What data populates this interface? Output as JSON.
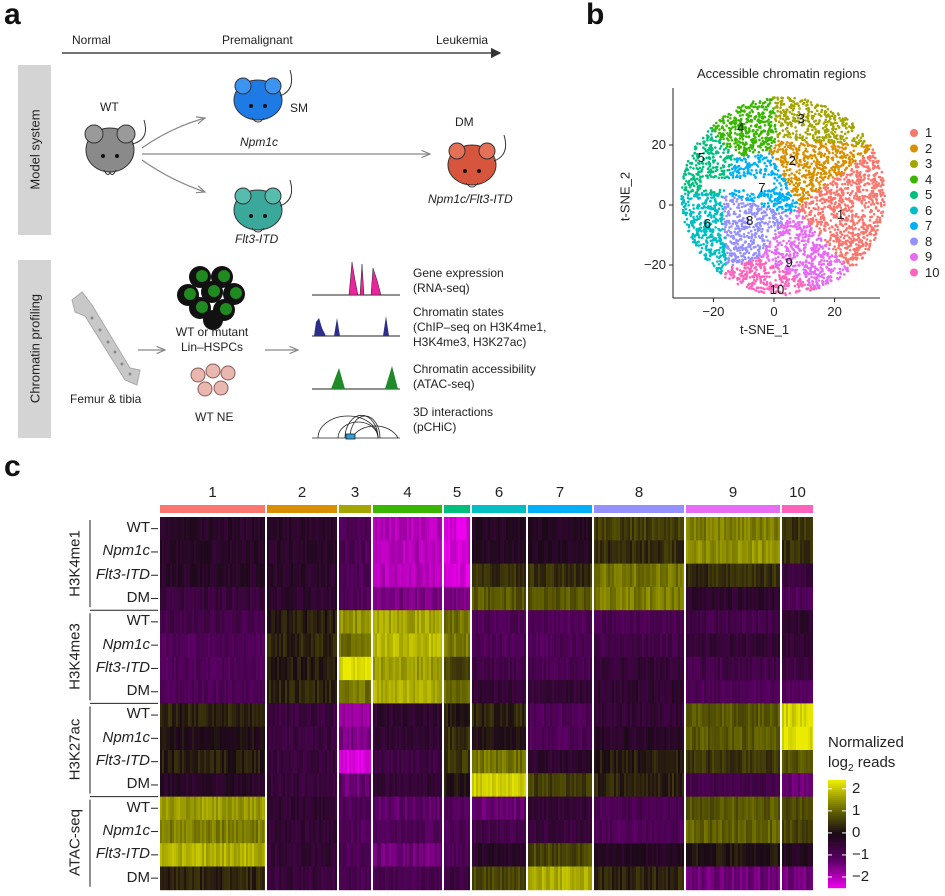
{
  "panel_a": {
    "label": "a",
    "timeline": [
      "Normal",
      "Premalignant",
      "Leukemia"
    ],
    "model_system_label": "Model system",
    "chromatin_profiling_label": "Chromatin profiling",
    "mice": {
      "wt": "WT",
      "sm": "SM",
      "sm_genotype": "Npm1c",
      "flt3_genotype": "Flt3-ITD",
      "dm": "DM",
      "dm_genotype": "Npm1c/Flt3-ITD"
    },
    "bone_label": "Femur & tibia",
    "hspc_label_1": "WT or mutant",
    "hspc_label_2": "Lin–HSPCs",
    "ne_label": "WT NE",
    "assays": [
      {
        "line1": "Gene expression",
        "line2": "(RNA-seq)"
      },
      {
        "line1": "Chromatin states",
        "line2": "(ChIP–seq on H3K4me1,",
        "line3": "H3K4me3, H3K27ac)"
      },
      {
        "line1": "Chromatin accessibility",
        "line2": "(ATAC-seq)"
      },
      {
        "line1": "3D interactions",
        "line2": "(pCHiC)"
      }
    ],
    "colors": {
      "wt_mouse": "#8a8a8a",
      "sm_mouse": "#1e7be6",
      "flt3_mouse": "#3aa89a",
      "dm_mouse": "#d8553d",
      "rna": "#e8259c",
      "chip": "#2b2f8a",
      "atac": "#1f8a2a",
      "pchic": "#2aa0d8"
    }
  },
  "panel_b": {
    "label": "b",
    "chart_data": {
      "type": "scatter",
      "title": "Accessible chromatin regions",
      "xlabel": "t-SNE_1",
      "ylabel": "t-SNE_2",
      "xlim": [
        -33,
        38
      ],
      "ylim": [
        -31,
        38
      ],
      "xticks": [
        "−20",
        "0",
        "20"
      ],
      "yticks": [
        "20",
        "0",
        "−20"
      ],
      "xtick_values": [
        -20,
        0,
        20
      ],
      "ytick_values": [
        20,
        0,
        -20
      ],
      "legend_position": "right",
      "clusters": [
        {
          "name": "1",
          "label_pos": [
            22,
            -3
          ],
          "center": [
            22,
            -3
          ],
          "color": "#F8766D"
        },
        {
          "name": "2",
          "label_pos": [
            6,
            15
          ],
          "center": [
            9,
            14
          ],
          "color": "#D89000"
        },
        {
          "name": "3",
          "label_pos": [
            9,
            29
          ],
          "center": [
            10,
            29
          ],
          "color": "#A3A500"
        },
        {
          "name": "4",
          "label_pos": [
            -11,
            26
          ],
          "center": [
            -9,
            27
          ],
          "color": "#39B600"
        },
        {
          "name": "5",
          "label_pos": [
            -24,
            16
          ],
          "center": [
            -25,
            15
          ],
          "color": "#00BF7D"
        },
        {
          "name": "6",
          "label_pos": [
            -22,
            -6
          ],
          "center": [
            -25,
            -7
          ],
          "color": "#00BFC4"
        },
        {
          "name": "7",
          "label_pos": [
            -4,
            6
          ],
          "center": [
            -4,
            7
          ],
          "color": "#00B0F6"
        },
        {
          "name": "8",
          "label_pos": [
            -8,
            -5
          ],
          "center": [
            -8,
            -6
          ],
          "color": "#9590FF"
        },
        {
          "name": "9",
          "label_pos": [
            5,
            -19
          ],
          "center": [
            7,
            -16
          ],
          "color": "#E76BF3"
        },
        {
          "name": "10",
          "label_pos": [
            1,
            -28
          ],
          "center": [
            0,
            -28
          ],
          "color": "#FF62BC"
        }
      ]
    }
  },
  "panel_c": {
    "label": "c",
    "chart_data": {
      "type": "heatmap",
      "columns": [
        "1",
        "2",
        "3",
        "4",
        "5",
        "6",
        "7",
        "8",
        "9",
        "10"
      ],
      "column_colors": [
        "#F8766D",
        "#D89000",
        "#A3A500",
        "#39B600",
        "#00BF7D",
        "#00BFC4",
        "#00B0F6",
        "#9590FF",
        "#E76BF3",
        "#FF62BC"
      ],
      "groups": [
        {
          "name": "H3K4me1",
          "rows": [
            "WT",
            "Npm1c",
            "Flt3-ITD",
            "DM"
          ]
        },
        {
          "name": "H3K4me3",
          "rows": [
            "WT",
            "Npm1c",
            "Flt3-ITD",
            "DM"
          ]
        },
        {
          "name": "H3K27ac",
          "rows": [
            "WT",
            "Npm1c",
            "Flt3-ITD",
            "DM"
          ]
        },
        {
          "name": "ATAC-seq",
          "rows": [
            "WT",
            "Npm1c",
            "Flt3-ITD",
            "DM"
          ]
        }
      ],
      "values": [
        [
          -0.3,
          -0.3,
          -1,
          -2,
          -2.3,
          -0.2,
          -0.2,
          0.6,
          1.3,
          0.5
        ],
        [
          -0.3,
          -0.3,
          -1,
          -2,
          -2.3,
          -0.2,
          -0.2,
          0.4,
          1.5,
          0.4
        ],
        [
          -0.3,
          -0.3,
          -1,
          -2,
          -2.3,
          0.4,
          0.4,
          1.2,
          0.4,
          -0.6
        ],
        [
          -0.6,
          -0.4,
          -1,
          -1.5,
          -1.5,
          0.9,
          0.9,
          1.3,
          -0.4,
          -1
        ],
        [
          -0.8,
          0.2,
          1.5,
          1.7,
          1.2,
          -1,
          -1,
          -0.9,
          -0.8,
          -0.4
        ],
        [
          -1,
          0.3,
          1.2,
          1.9,
          1.3,
          -1,
          -1,
          -0.8,
          -0.5,
          -0.5
        ],
        [
          -1,
          0.2,
          2.3,
          1.6,
          0.7,
          -0.8,
          -0.9,
          -0.5,
          -0.8,
          -0.7
        ],
        [
          -1,
          0.3,
          1.2,
          1.8,
          1.2,
          -0.5,
          -0.5,
          -0.4,
          -1,
          -1
        ],
        [
          0.3,
          -0.6,
          -1.8,
          -0.4,
          0.2,
          0.3,
          -1,
          -0.5,
          0.9,
          2.2
        ],
        [
          0,
          -0.6,
          -1.5,
          -0.4,
          0.4,
          0,
          -1,
          -0.3,
          0.9,
          2.3
        ],
        [
          0.2,
          -0.6,
          -2.3,
          -0.7,
          0.5,
          1.2,
          -0.4,
          0.2,
          0.5,
          0.9
        ],
        [
          -0.3,
          -0.6,
          -1.3,
          -0.5,
          0.1,
          2.1,
          0.6,
          0.3,
          -0.8,
          -1.3
        ],
        [
          1.6,
          -0.4,
          -1,
          -1.2,
          -1,
          -1.3,
          -0.5,
          -0.9,
          0.9,
          0.8
        ],
        [
          1.3,
          -0.5,
          -1,
          -1,
          -1,
          -0.8,
          -0.6,
          -1,
          1,
          0.7
        ],
        [
          1.8,
          -0.5,
          -1,
          -1.4,
          -1,
          -0.3,
          0.7,
          -0.2,
          0.1,
          -0.2
        ],
        [
          0.3,
          -0.6,
          -0.9,
          -0.9,
          -0.6,
          0.7,
          1.8,
          0.3,
          -1.4,
          -1.4
        ]
      ],
      "legend_title_1": "Normalized",
      "legend_title_2": "log",
      "legend_title_sub": "2",
      "legend_title_3": " reads",
      "legend_ticks": [
        "2",
        "1",
        "0",
        "−1",
        "−2"
      ],
      "legend_tick_values": [
        2,
        1,
        0,
        -1,
        -2
      ],
      "range": [
        -2.5,
        2.4
      ]
    }
  }
}
